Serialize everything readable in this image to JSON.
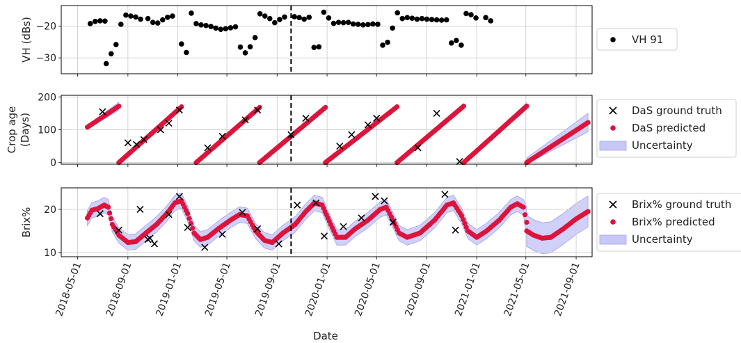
{
  "chart_data": {
    "type": "scatter",
    "xlabel": "Date",
    "x_tick_labels": [
      "2018-05-01",
      "2018-09-01",
      "2019-01-01",
      "2019-05-01",
      "2019-09-01",
      "2020-01-01",
      "2020-05-01",
      "2020-09-01",
      "2021-01-01",
      "2021-05-01",
      "2021-09-01"
    ],
    "x_range": [
      "2018-03-22",
      "2021-10-10"
    ],
    "vertical_marker_date": "2019-10-05",
    "grid": true,
    "panels": [
      {
        "ylabel": "VH (dBs)",
        "ylim": [
          -35,
          -13.5
        ],
        "yticks": [
          -30,
          -20
        ],
        "ytick_labels": [
          "−30",
          "−20"
        ],
        "legend": [
          {
            "label": "VH 91",
            "marker": "dot",
            "color": "#000000"
          }
        ],
        "series": [
          {
            "name": "VH 91",
            "color": "#000000",
            "points": [
              [
                "2018-06-01",
                -19.2
              ],
              [
                "2018-06-13",
                -18.5
              ],
              [
                "2018-06-25",
                -18.3
              ],
              [
                "2018-07-07",
                -18.4
              ],
              [
                "2018-07-10",
                -31.8
              ],
              [
                "2018-07-22",
                -28.7
              ],
              [
                "2018-08-03",
                -25.8
              ],
              [
                "2018-08-15",
                -19.4
              ],
              [
                "2018-08-27",
                -16.5
              ],
              [
                "2018-09-08",
                -16.8
              ],
              [
                "2018-09-20",
                -17.1
              ],
              [
                "2018-10-02",
                -17.8
              ],
              [
                "2018-10-20",
                -17.6
              ],
              [
                "2018-11-01",
                -18.8
              ],
              [
                "2018-11-13",
                -19.0
              ],
              [
                "2018-11-25",
                -18.0
              ],
              [
                "2018-12-07",
                -17.2
              ],
              [
                "2018-12-19",
                -16.8
              ],
              [
                "2019-01-10",
                -25.6
              ],
              [
                "2019-01-22",
                -28.3
              ],
              [
                "2019-02-03",
                -15.9
              ],
              [
                "2019-02-15",
                -19.2
              ],
              [
                "2019-02-27",
                -19.6
              ],
              [
                "2019-03-11",
                -19.8
              ],
              [
                "2019-03-23",
                -20.1
              ],
              [
                "2019-04-04",
                -20.6
              ],
              [
                "2019-04-16",
                -21.0
              ],
              [
                "2019-04-28",
                -20.8
              ],
              [
                "2019-05-10",
                -20.5
              ],
              [
                "2019-05-22",
                -20.2
              ],
              [
                "2019-06-03",
                -26.6
              ],
              [
                "2019-06-15",
                -28.4
              ],
              [
                "2019-06-27",
                -26.5
              ],
              [
                "2019-07-09",
                -23.6
              ],
              [
                "2019-07-21",
                -16.1
              ],
              [
                "2019-08-02",
                -16.8
              ],
              [
                "2019-08-14",
                -17.6
              ],
              [
                "2019-08-26",
                -18.9
              ],
              [
                "2019-09-07",
                -17.9
              ],
              [
                "2019-09-19",
                -17.1
              ],
              [
                "2019-10-13",
                -17.0
              ],
              [
                "2019-10-25",
                -17.3
              ],
              [
                "2019-11-06",
                -17.8
              ],
              [
                "2019-11-18",
                -17.2
              ],
              [
                "2019-11-30",
                -26.7
              ],
              [
                "2019-12-12",
                -26.5
              ],
              [
                "2019-12-24",
                -15.6
              ],
              [
                "2020-01-05",
                -17.4
              ],
              [
                "2020-01-17",
                -19.1
              ],
              [
                "2020-01-29",
                -18.8
              ],
              [
                "2020-02-10",
                -18.9
              ],
              [
                "2020-02-22",
                -18.8
              ],
              [
                "2020-03-05",
                -19.3
              ],
              [
                "2020-03-17",
                -19.4
              ],
              [
                "2020-03-29",
                -19.6
              ],
              [
                "2020-04-10",
                -19.5
              ],
              [
                "2020-04-22",
                -19.3
              ],
              [
                "2020-05-04",
                -19.4
              ],
              [
                "2020-05-16",
                -26.0
              ],
              [
                "2020-05-28",
                -25.1
              ],
              [
                "2020-06-09",
                -20.6
              ],
              [
                "2020-06-21",
                -15.8
              ],
              [
                "2020-07-03",
                -17.6
              ],
              [
                "2020-07-15",
                -17.3
              ],
              [
                "2020-07-27",
                -17.5
              ],
              [
                "2020-08-08",
                -17.8
              ],
              [
                "2020-08-20",
                -17.6
              ],
              [
                "2020-09-01",
                -17.8
              ],
              [
                "2020-09-13",
                -17.9
              ],
              [
                "2020-09-25",
                -18.0
              ],
              [
                "2020-10-07",
                -18.1
              ],
              [
                "2020-10-19",
                -18.0
              ],
              [
                "2020-10-31",
                -25.3
              ],
              [
                "2020-11-12",
                -24.5
              ],
              [
                "2020-11-24",
                -26.0
              ],
              [
                "2020-12-06",
                -16.0
              ],
              [
                "2020-12-18",
                -16.4
              ],
              [
                "2020-12-30",
                -17.4
              ],
              [
                "2021-01-23",
                -17.3
              ],
              [
                "2021-02-04",
                -18.3
              ]
            ]
          }
        ]
      },
      {
        "ylabel": "Crop age\n(Days)",
        "ylim": [
          -5,
          205
        ],
        "yticks": [
          0,
          100,
          200
        ],
        "ytick_labels": [
          "0",
          "100",
          "200"
        ],
        "legend": [
          {
            "label": "DaS ground truth",
            "marker": "x",
            "color": "#000000"
          },
          {
            "label": "DaS predicted",
            "marker": "dot",
            "color": "#e41a1c"
          },
          {
            "label": "Uncertainty",
            "marker": "band",
            "color": "#c8c8f8"
          }
        ],
        "cycles": [
          {
            "start": "2018-05-25",
            "age0": 108,
            "end": "2018-08-10",
            "age1": 172,
            "band": 12
          },
          {
            "start": "2018-08-10",
            "age0": 0,
            "end": "2019-01-10",
            "age1": 170,
            "band": 8
          },
          {
            "start": "2019-02-15",
            "age0": 0,
            "end": "2019-07-20",
            "age1": 168,
            "band": 8
          },
          {
            "start": "2019-07-20",
            "age0": 0,
            "end": "2019-12-28",
            "age1": 168,
            "band": 8
          },
          {
            "start": "2019-12-28",
            "age0": 0,
            "end": "2020-06-20",
            "age1": 170,
            "band": 8
          },
          {
            "start": "2020-06-20",
            "age0": 0,
            "end": "2020-11-30",
            "age1": 172,
            "band": 8
          },
          {
            "start": "2020-11-30",
            "age0": 0,
            "end": "2021-05-03",
            "age1": 172,
            "band": 10
          },
          {
            "start": "2021-05-03",
            "age0": 0,
            "end": "2021-09-30",
            "age1": 122,
            "band": 28
          }
        ],
        "ground_truth": [
          [
            "2018-07-01",
            155
          ],
          [
            "2018-09-01",
            60
          ],
          [
            "2018-09-22",
            55
          ],
          [
            "2018-10-10",
            70
          ],
          [
            "2018-11-20",
            100
          ],
          [
            "2018-12-10",
            120
          ],
          [
            "2019-01-05",
            160
          ],
          [
            "2019-03-15",
            45
          ],
          [
            "2019-04-20",
            80
          ],
          [
            "2019-06-15",
            130
          ],
          [
            "2019-07-15",
            160
          ],
          [
            "2019-10-05",
            85
          ],
          [
            "2019-11-10",
            135
          ],
          [
            "2020-02-01",
            50
          ],
          [
            "2020-03-01",
            85
          ],
          [
            "2020-04-10",
            115
          ],
          [
            "2020-05-01",
            135
          ],
          [
            "2020-08-10",
            45
          ],
          [
            "2020-09-25",
            150
          ],
          [
            "2020-11-20",
            3
          ]
        ]
      },
      {
        "ylabel": "Brix%",
        "ylim": [
          9,
          25
        ],
        "yticks": [
          10,
          20
        ],
        "ytick_labels": [
          "10",
          "20"
        ],
        "legend": [
          {
            "label": "Brix% ground truth",
            "marker": "x",
            "color": "#000000"
          },
          {
            "label": "Brix% predicted",
            "marker": "dot",
            "color": "#e41a1c"
          },
          {
            "label": "Uncertainty",
            "marker": "band",
            "color": "#c8c8f8"
          }
        ],
        "predicted_curve": [
          [
            "2018-05-25",
            18.0
          ],
          [
            "2018-06-05",
            19.8
          ],
          [
            "2018-06-20",
            20.2
          ],
          [
            "2018-07-05",
            21.0
          ],
          [
            "2018-07-15",
            20.5
          ],
          [
            "2018-07-25",
            16.5
          ],
          [
            "2018-08-10",
            14.0
          ],
          [
            "2018-09-01",
            12.3
          ],
          [
            "2018-09-20",
            12.5
          ],
          [
            "2018-10-15",
            14.5
          ],
          [
            "2018-11-10",
            16.5
          ],
          [
            "2018-12-05",
            19.0
          ],
          [
            "2018-12-25",
            21.5
          ],
          [
            "2019-01-10",
            22.0
          ],
          [
            "2019-01-25",
            19.0
          ],
          [
            "2019-02-10",
            14.5
          ],
          [
            "2019-02-25",
            13.0
          ],
          [
            "2019-03-15",
            13.5
          ],
          [
            "2019-04-10",
            15.5
          ],
          [
            "2019-05-10",
            17.5
          ],
          [
            "2019-06-01",
            18.8
          ],
          [
            "2019-06-20",
            18.5
          ],
          [
            "2019-07-10",
            15.0
          ],
          [
            "2019-08-01",
            12.8
          ],
          [
            "2019-08-20",
            12.3
          ],
          [
            "2019-09-15",
            14.5
          ],
          [
            "2019-10-15",
            16.5
          ],
          [
            "2019-11-10",
            19.5
          ],
          [
            "2019-12-01",
            21.5
          ],
          [
            "2019-12-20",
            21.0
          ],
          [
            "2020-01-10",
            16.5
          ],
          [
            "2020-01-25",
            13.5
          ],
          [
            "2020-02-15",
            13.5
          ],
          [
            "2020-03-10",
            15.5
          ],
          [
            "2020-04-10",
            17.5
          ],
          [
            "2020-05-10",
            20.0
          ],
          [
            "2020-05-25",
            20.5
          ],
          [
            "2020-06-10",
            17.5
          ],
          [
            "2020-06-25",
            14.5
          ],
          [
            "2020-07-15",
            13.5
          ],
          [
            "2020-08-15",
            14.5
          ],
          [
            "2020-09-20",
            17.5
          ],
          [
            "2020-10-20",
            21.0
          ],
          [
            "2020-11-05",
            21.5
          ],
          [
            "2020-11-25",
            18.5
          ],
          [
            "2020-12-10",
            15.0
          ],
          [
            "2021-01-01",
            13.5
          ],
          [
            "2021-01-25",
            15.0
          ],
          [
            "2021-02-25",
            17.5
          ],
          [
            "2021-03-25",
            20.5
          ],
          [
            "2021-04-10",
            21.3
          ],
          [
            "2021-04-25",
            20.5
          ],
          [
            "2021-05-03",
            17.0
          ],
          [
            "2021-05-03",
            15.0
          ],
          [
            "2021-05-20",
            14.0
          ],
          [
            "2021-06-10",
            13.3
          ],
          [
            "2021-07-01",
            13.5
          ],
          [
            "2021-08-01",
            15.5
          ],
          [
            "2021-09-01",
            17.8
          ],
          [
            "2021-09-30",
            19.5
          ]
        ],
        "ground_truth": [
          [
            "2018-06-25",
            19.0
          ],
          [
            "2018-08-10",
            15.2
          ],
          [
            "2018-10-01",
            20.0
          ],
          [
            "2018-10-20",
            13.0
          ],
          [
            "2018-10-25",
            13.3
          ],
          [
            "2018-11-05",
            12.0
          ],
          [
            "2018-12-10",
            18.8
          ],
          [
            "2019-01-05",
            23.0
          ],
          [
            "2019-01-25",
            15.8
          ],
          [
            "2019-03-08",
            11.2
          ],
          [
            "2019-04-20",
            14.2
          ],
          [
            "2019-06-08",
            19.3
          ],
          [
            "2019-07-15",
            15.5
          ],
          [
            "2019-09-05",
            12.0
          ],
          [
            "2019-10-20",
            21.0
          ],
          [
            "2019-12-05",
            21.5
          ],
          [
            "2019-12-25",
            13.8
          ],
          [
            "2020-02-10",
            16.0
          ],
          [
            "2020-03-25",
            18.0
          ],
          [
            "2020-04-28",
            23.0
          ],
          [
            "2020-05-20",
            22.0
          ],
          [
            "2020-06-10",
            17.0
          ],
          [
            "2020-10-15",
            23.5
          ],
          [
            "2020-11-10",
            15.2
          ]
        ]
      }
    ]
  }
}
